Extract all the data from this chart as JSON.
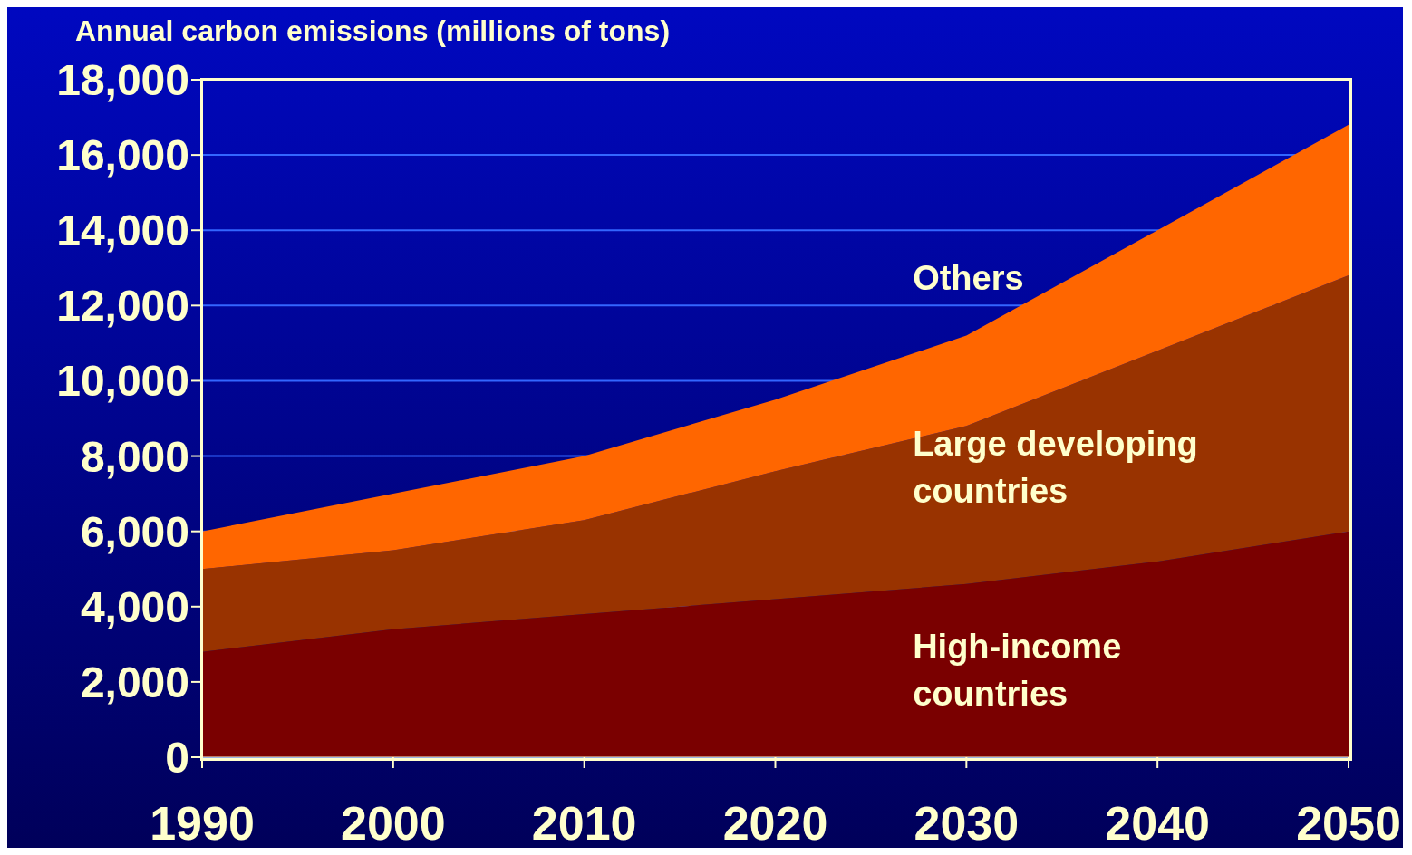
{
  "chart_data": {
    "type": "area",
    "stacked": true,
    "ylabel": "Annual carbon emissions (millions of tons)",
    "x": [
      1990,
      2000,
      2010,
      2020,
      2030,
      2040,
      2050
    ],
    "xlim": [
      1990,
      2050
    ],
    "xticks": [
      1990,
      2000,
      2010,
      2020,
      2030,
      2040,
      2050
    ],
    "ylim": [
      0,
      18000
    ],
    "yticks": [
      {
        "value": 0,
        "label": "0"
      },
      {
        "value": 2000,
        "label": "2,000"
      },
      {
        "value": 4000,
        "label": "4,000"
      },
      {
        "value": 6000,
        "label": "6,000"
      },
      {
        "value": 8000,
        "label": "8,000"
      },
      {
        "value": 10000,
        "label": "10,000"
      },
      {
        "value": 12000,
        "label": "12,000"
      },
      {
        "value": 14000,
        "label": "14,000"
      },
      {
        "value": 16000,
        "label": "16,000"
      },
      {
        "value": 18000,
        "label": "18,000"
      }
    ],
    "grid": "y",
    "series": [
      {
        "name": "High-income countries",
        "color": "#7a0000",
        "values": [
          2800,
          3400,
          3800,
          4200,
          4600,
          5200,
          6000
        ]
      },
      {
        "name": "Large developing countries",
        "color": "#993300",
        "values": [
          2200,
          2100,
          2500,
          3400,
          4200,
          5600,
          6800
        ]
      },
      {
        "name": "Others",
        "color": "#ff6600",
        "values": [
          1000,
          1500,
          1700,
          1900,
          2400,
          3200,
          4000
        ]
      }
    ]
  }
}
